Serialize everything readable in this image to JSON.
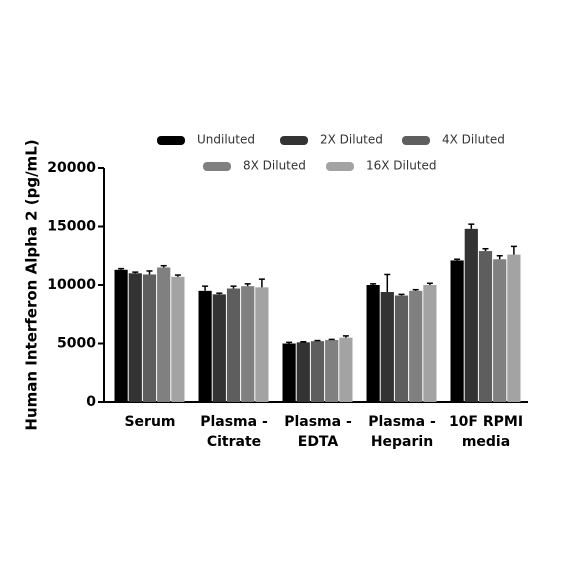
{
  "chart_data": {
    "type": "bar",
    "y_label": "Human Interferon Alpha 2 (pg/mL)",
    "categories": [
      "Serum",
      "Plasma -\nCitrate",
      "Plasma -\nEDTA",
      "Plasma -\nHeparin",
      "10F RPMI\nmedia"
    ],
    "series": [
      {
        "name": "Undiluted",
        "color": "#000000",
        "values": [
          11300,
          9500,
          5000,
          10000,
          12100
        ],
        "errors": [
          100,
          400,
          100,
          100,
          100
        ]
      },
      {
        "name": "2X Diluted",
        "color": "#333333",
        "values": [
          11000,
          9200,
          5100,
          9400,
          14800
        ],
        "errors": [
          100,
          100,
          50,
          1500,
          400
        ]
      },
      {
        "name": "4X Diluted",
        "color": "#5e5e5e",
        "values": [
          10900,
          9700,
          5200,
          9100,
          12900
        ],
        "errors": [
          300,
          200,
          50,
          100,
          200
        ]
      },
      {
        "name": "8X Diluted",
        "color": "#808080",
        "values": [
          11500,
          9900,
          5300,
          9500,
          12200
        ],
        "errors": [
          150,
          200,
          50,
          100,
          300
        ]
      },
      {
        "name": "16X Diluted",
        "color": "#a3a3a3",
        "values": [
          10700,
          9800,
          5500,
          10000,
          12600
        ],
        "errors": [
          150,
          700,
          150,
          150,
          700
        ]
      }
    ],
    "ylim": [
      0,
      20000
    ],
    "yticks": [
      0,
      5000,
      10000,
      15000,
      20000
    ],
    "grid": false
  }
}
